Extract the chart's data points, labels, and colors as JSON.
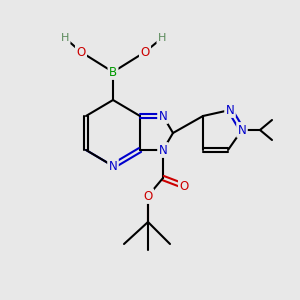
{
  "background_color": "#e8e8e8",
  "colors": {
    "C": "#000000",
    "N": "#0000cc",
    "O": "#cc0000",
    "B": "#009900",
    "H": "#5a8a5a"
  },
  "lw": 1.5,
  "fs": 8.5,
  "fsh": 8.0
}
